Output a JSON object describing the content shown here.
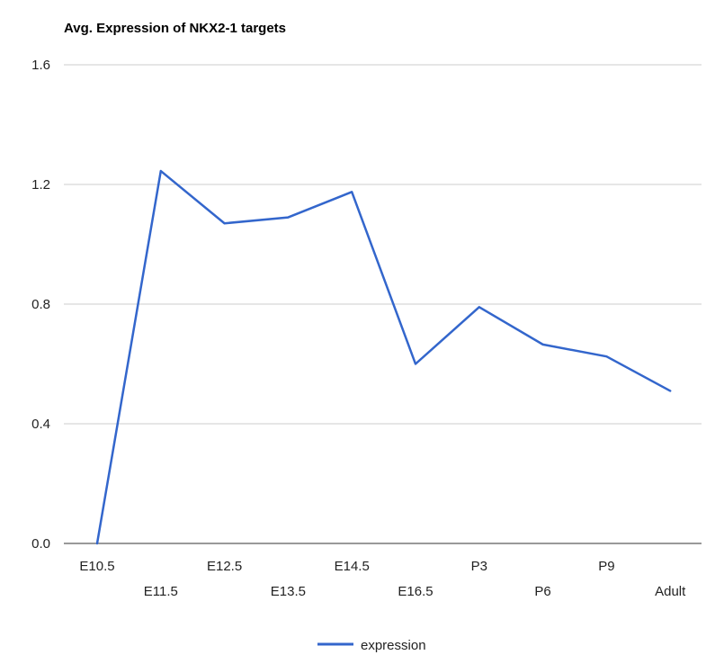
{
  "chart_data": {
    "type": "line",
    "title": "Avg. Expression of NKX2-1 targets",
    "xlabel": "",
    "ylabel": "",
    "categories": [
      "E10.5",
      "E11.5",
      "E12.5",
      "E13.5",
      "E14.5",
      "E16.5",
      "P3",
      "P6",
      "P9",
      "Adult"
    ],
    "series": [
      {
        "name": "expression",
        "color": "#3366cc",
        "values": [
          0.0,
          1.245,
          1.07,
          1.09,
          1.175,
          0.6,
          0.79,
          0.665,
          0.625,
          0.51
        ]
      }
    ],
    "ylim": [
      0,
      1.6
    ],
    "yticks": [
      "0.0",
      "0.4",
      "0.8",
      "1.2",
      "1.6"
    ],
    "grid": true,
    "legend": "bottom"
  }
}
